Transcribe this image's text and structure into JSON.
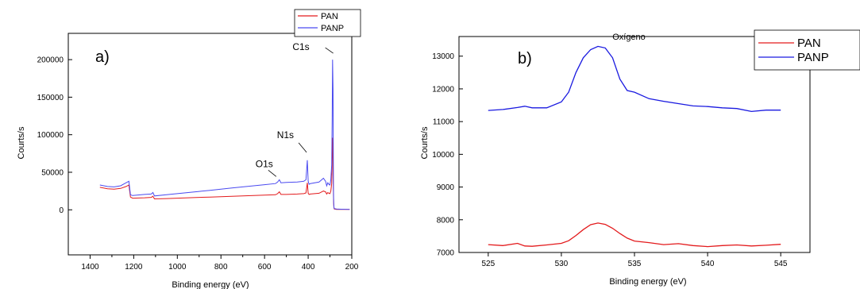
{
  "figure": {
    "panel_a_label": "a)",
    "panel_b_label": "b)"
  },
  "chart_data": [
    {
      "type": "line",
      "panel": "a)",
      "title": "",
      "xlabel": "Binding energy (eV)",
      "ylabel": "Courts/s",
      "xlim": [
        1500,
        200
      ],
      "ylim": [
        -60000,
        235000
      ],
      "x_reversed": true,
      "xticks": [
        1400,
        1200,
        1000,
        800,
        600,
        400,
        200
      ],
      "yticks": [
        0,
        50000,
        100000,
        150000,
        200000
      ],
      "legend": {
        "position": "top-right",
        "entries": [
          "PAN",
          "PANP"
        ]
      },
      "annotations": [
        {
          "text": "C1s",
          "x": 285,
          "y": 200000
        },
        {
          "text": "N1s",
          "x": 400,
          "y": 66000
        },
        {
          "text": "O1s",
          "x": 532,
          "y": 38000
        }
      ],
      "series": [
        {
          "name": "PAN",
          "color": "#e31a1c",
          "x": [
            1355,
            1320,
            1290,
            1260,
            1235,
            1222,
            1215,
            1205,
            1150,
            1120,
            1112,
            1105,
            1050,
            1000,
            950,
            900,
            850,
            800,
            750,
            700,
            650,
            600,
            550,
            540,
            532,
            525,
            500,
            450,
            420,
            410,
            404,
            400,
            396,
            390,
            350,
            330,
            320,
            315,
            310,
            305,
            300,
            296,
            292,
            290,
            288,
            286,
            285,
            284,
            283,
            282,
            281,
            280,
            270,
            250,
            230,
            210
          ],
          "y": [
            30000,
            28000,
            27500,
            28500,
            31000,
            33000,
            17000,
            15500,
            16000,
            16500,
            18000,
            14500,
            15000,
            15500,
            16000,
            16500,
            17000,
            17500,
            18000,
            18500,
            19000,
            19500,
            20000,
            21500,
            24000,
            20500,
            20500,
            21000,
            21500,
            22500,
            36000,
            22000,
            20500,
            21000,
            22000,
            25000,
            24000,
            21000,
            23000,
            22000,
            21500,
            25000,
            35000,
            60000,
            96000,
            75000,
            40000,
            20000,
            8000,
            3000,
            1500,
            1000,
            500,
            500,
            500,
            500
          ]
        },
        {
          "name": "PANP",
          "color": "#4a4af0",
          "x": [
            1355,
            1320,
            1290,
            1260,
            1235,
            1222,
            1215,
            1205,
            1150,
            1120,
            1112,
            1105,
            1050,
            1000,
            950,
            900,
            850,
            800,
            750,
            700,
            650,
            600,
            550,
            540,
            532,
            525,
            500,
            450,
            420,
            410,
            404,
            400,
            396,
            390,
            350,
            330,
            320,
            315,
            310,
            305,
            300,
            296,
            292,
            290,
            288,
            286,
            285,
            284,
            283,
            282,
            281,
            280,
            270,
            250,
            230,
            210
          ],
          "y": [
            33000,
            31000,
            30500,
            32000,
            36000,
            38000,
            20000,
            19000,
            20500,
            21000,
            23000,
            18500,
            20000,
            21500,
            23000,
            24500,
            26000,
            27500,
            29000,
            30500,
            32000,
            33500,
            35000,
            37000,
            40000,
            36000,
            36500,
            37000,
            38000,
            40000,
            66000,
            38000,
            34000,
            35000,
            37000,
            42000,
            38000,
            32000,
            36000,
            34000,
            33000,
            40000,
            60000,
            120000,
            200000,
            160000,
            80000,
            30000,
            10000,
            4000,
            2000,
            1500,
            1000,
            800,
            700,
            600
          ]
        }
      ]
    },
    {
      "type": "line",
      "panel": "b)",
      "title": "Oxígeno",
      "xlabel": "Binding energy (eV)",
      "ylabel": "Courts/s",
      "xlim": [
        523,
        547
      ],
      "ylim": [
        7000,
        13600
      ],
      "xticks": [
        525,
        530,
        535,
        540,
        545
      ],
      "yticks": [
        7000,
        8000,
        9000,
        10000,
        11000,
        12000,
        13000
      ],
      "legend": {
        "position": "top-right",
        "entries": [
          "PAN",
          "PANP"
        ]
      },
      "series": [
        {
          "name": "PAN",
          "color": "#e31a1c",
          "x": [
            525,
            526,
            527,
            527.5,
            528,
            529,
            530,
            530.5,
            531,
            531.5,
            532,
            532.5,
            533,
            533.5,
            534,
            534.5,
            535,
            536,
            537,
            538,
            539,
            540,
            541,
            542,
            543,
            544,
            545
          ],
          "y": [
            7240,
            7210,
            7280,
            7200,
            7190,
            7230,
            7280,
            7360,
            7520,
            7700,
            7850,
            7900,
            7860,
            7740,
            7580,
            7440,
            7350,
            7300,
            7240,
            7270,
            7210,
            7180,
            7210,
            7230,
            7200,
            7220,
            7250
          ]
        },
        {
          "name": "PANP",
          "color": "#1a1ae0",
          "x": [
            525,
            526,
            527,
            527.5,
            528,
            529,
            530,
            530.5,
            531,
            531.5,
            532,
            532.5,
            533,
            533.5,
            534,
            534.5,
            535,
            536,
            537,
            538,
            539,
            540,
            541,
            542,
            543,
            544,
            545
          ],
          "y": [
            11340,
            11370,
            11430,
            11470,
            11420,
            11420,
            11600,
            11900,
            12500,
            12950,
            13200,
            13300,
            13250,
            12950,
            12300,
            11950,
            11900,
            11700,
            11620,
            11550,
            11480,
            11460,
            11420,
            11400,
            11310,
            11350,
            11350
          ]
        }
      ]
    }
  ]
}
